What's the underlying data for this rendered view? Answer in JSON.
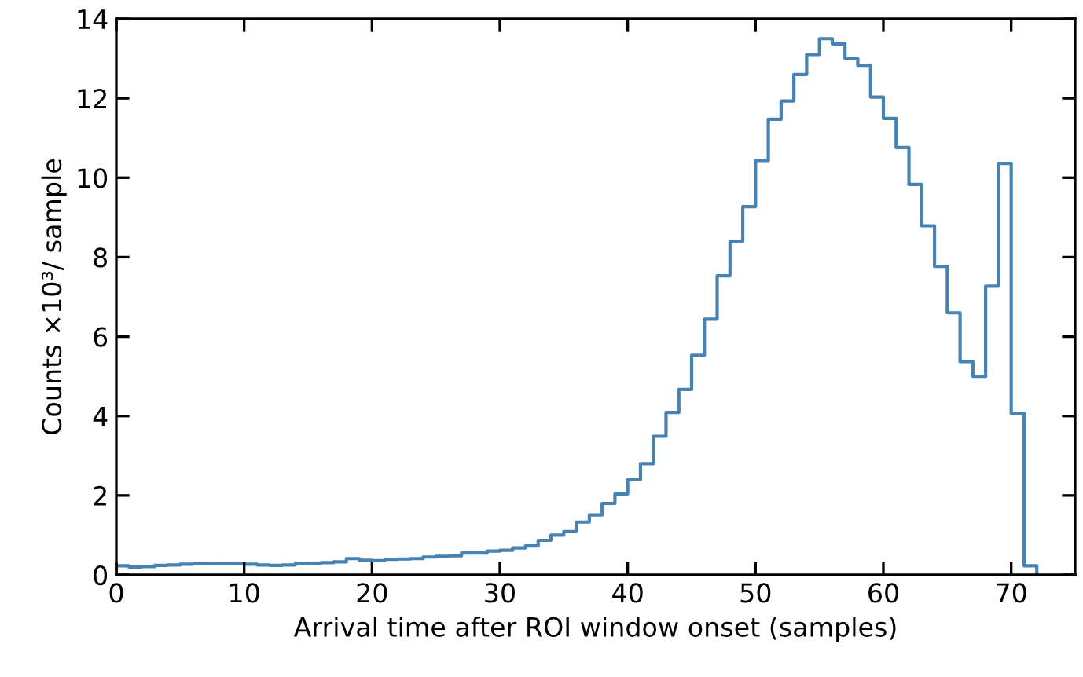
{
  "chart_data": {
    "type": "histogram",
    "xlabel": "Arrival time after ROI window onset (samples)",
    "ylabel": "Counts ×10³/ sample",
    "bins": [
      0,
      1,
      2,
      3,
      4,
      5,
      6,
      7,
      8,
      9,
      10,
      11,
      12,
      13,
      14,
      15,
      16,
      17,
      18,
      19,
      20,
      21,
      22,
      23,
      24,
      25,
      26,
      27,
      28,
      29,
      30,
      31,
      32,
      33,
      34,
      35,
      36,
      37,
      38,
      39,
      40,
      41,
      42,
      43,
      44,
      45,
      46,
      47,
      48,
      49,
      50,
      51,
      52,
      53,
      54,
      55,
      56,
      57,
      58,
      59,
      60,
      61,
      62,
      63,
      64,
      65,
      66,
      67,
      68,
      69,
      70,
      71,
      72
    ],
    "values": [
      0.23,
      0.2,
      0.21,
      0.24,
      0.25,
      0.27,
      0.29,
      0.28,
      0.29,
      0.28,
      0.27,
      0.25,
      0.24,
      0.25,
      0.28,
      0.29,
      0.31,
      0.33,
      0.41,
      0.37,
      0.36,
      0.39,
      0.4,
      0.41,
      0.45,
      0.47,
      0.48,
      0.55,
      0.55,
      0.6,
      0.62,
      0.68,
      0.73,
      0.87,
      1.0,
      1.09,
      1.33,
      1.51,
      1.8,
      2.04,
      2.4,
      2.8,
      3.49,
      4.09,
      4.67,
      5.53,
      6.44,
      7.53,
      8.4,
      9.27,
      10.43,
      11.47,
      11.93,
      12.6,
      13.1,
      13.5,
      13.37,
      13.0,
      12.83,
      12.03,
      11.49,
      10.76,
      9.83,
      8.79,
      7.77,
      6.6,
      5.37,
      5.0,
      7.27,
      10.36,
      4.07,
      0.23
    ],
    "color": "#4682b4",
    "xlim": [
      0,
      75
    ],
    "ylim": [
      0,
      14
    ],
    "xticks": [
      0,
      10,
      20,
      30,
      40,
      50,
      60,
      70
    ],
    "yticks": [
      0,
      2,
      4,
      6,
      8,
      10,
      12,
      14
    ],
    "grid": false
  }
}
